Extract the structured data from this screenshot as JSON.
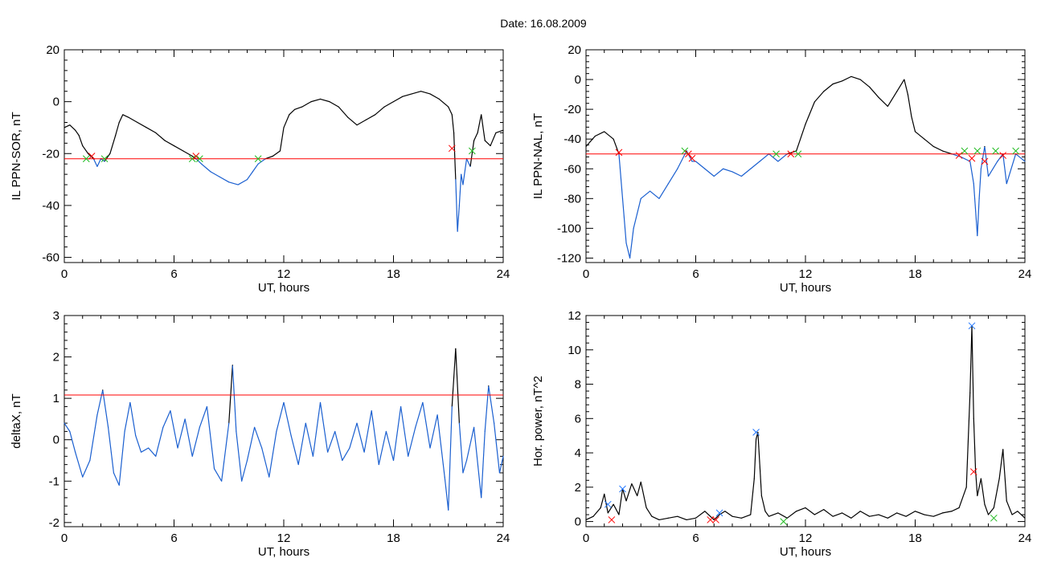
{
  "figure_title": "Date:  16.08.2009",
  "colors": {
    "trace": "#000000",
    "below": "#1a5fd0",
    "threshold": "#ff0000",
    "cross_red": "#ff0000",
    "cross_green": "#22bb22",
    "cross_blue": "#2277ff"
  },
  "chart_data": [
    {
      "id": "sor",
      "type": "line",
      "ylabel": "IL PPN-SOR, nT",
      "xlabel": "UT, hours",
      "xlim": [
        0,
        24
      ],
      "xticks": [
        0,
        6,
        12,
        18,
        24
      ],
      "ylim": [
        -62,
        20
      ],
      "yticks": [
        20,
        0,
        -20,
        -40,
        -60
      ],
      "threshold": -22,
      "series": [
        {
          "x": [
            0,
            0.3,
            0.6,
            0.8,
            1.0,
            1.3,
            1.6,
            1.8,
            2.0,
            2.2,
            2.5,
            2.8,
            3.0,
            3.2,
            3.5,
            4.0,
            4.5,
            5.0,
            5.5,
            6.0,
            6.5,
            7.0,
            7.2,
            7.5,
            8.0,
            8.5,
            9.0,
            9.5,
            10.0,
            10.3,
            10.6,
            11.0,
            11.4,
            11.8,
            12.0,
            12.3,
            12.6,
            13.0,
            13.5,
            14.0,
            14.5,
            15.0,
            15.5,
            16.0,
            16.5,
            17.0,
            17.5,
            18.0,
            18.5,
            19.0,
            19.5,
            20.0,
            20.5,
            21.0,
            21.2,
            21.3,
            21.4,
            21.5,
            21.6,
            21.7,
            21.8,
            22.0,
            22.2,
            22.4,
            22.6,
            22.8,
            23.0,
            23.3,
            23.6,
            24.0
          ],
          "y": [
            -10,
            -9,
            -11,
            -13,
            -17,
            -20,
            -22,
            -25,
            -22,
            -23,
            -20,
            -13,
            -8,
            -5,
            -6,
            -8,
            -10,
            -12,
            -15,
            -17,
            -19,
            -21,
            -22,
            -24,
            -27,
            -29,
            -31,
            -32,
            -30,
            -27,
            -24,
            -22,
            -21,
            -19,
            -10,
            -5,
            -3,
            -2,
            0,
            1,
            0,
            -2,
            -6,
            -9,
            -7,
            -5,
            -2,
            0,
            2,
            3,
            4,
            3,
            1,
            -2,
            -5,
            -12,
            -30,
            -50,
            -40,
            -28,
            -32,
            -22,
            -25,
            -15,
            -12,
            -5,
            -15,
            -17,
            -12,
            -11
          ]
        }
      ],
      "markers": [
        {
          "x": 1.2,
          "y": -22,
          "color": "green"
        },
        {
          "x": 1.5,
          "y": -21,
          "color": "red"
        },
        {
          "x": 2.2,
          "y": -22,
          "color": "green"
        },
        {
          "x": 7.0,
          "y": -22,
          "color": "green"
        },
        {
          "x": 7.2,
          "y": -21,
          "color": "red"
        },
        {
          "x": 7.4,
          "y": -22,
          "color": "green"
        },
        {
          "x": 10.6,
          "y": -22,
          "color": "green"
        },
        {
          "x": 21.2,
          "y": -18,
          "color": "red"
        },
        {
          "x": 22.3,
          "y": -19,
          "color": "green"
        }
      ]
    },
    {
      "id": "nal",
      "type": "line",
      "ylabel": "IL PPN-NAL, nT",
      "xlabel": "UT, hours",
      "xlim": [
        0,
        24
      ],
      "xticks": [
        0,
        6,
        12,
        18,
        24
      ],
      "ylim": [
        -123,
        20
      ],
      "yticks": [
        20,
        0,
        -20,
        -40,
        -60,
        -80,
        -100,
        -120
      ],
      "threshold": -50,
      "series": [
        {
          "x": [
            0,
            0.5,
            1.0,
            1.5,
            1.8,
            2.0,
            2.2,
            2.4,
            2.6,
            3.0,
            3.5,
            4.0,
            4.5,
            5.0,
            5.5,
            5.8,
            6.0,
            6.5,
            7.0,
            7.5,
            8.0,
            8.5,
            9.0,
            9.5,
            10.0,
            10.5,
            11.0,
            11.5,
            12.0,
            12.5,
            13.0,
            13.5,
            14.0,
            14.5,
            15.0,
            15.5,
            16.0,
            16.5,
            17.0,
            17.4,
            17.6,
            17.8,
            18.0,
            18.5,
            19.0,
            19.5,
            20.0,
            20.5,
            21.0,
            21.2,
            21.4,
            21.5,
            21.6,
            21.8,
            22.0,
            22.5,
            22.8,
            23.0,
            23.5,
            24.0
          ],
          "y": [
            -45,
            -38,
            -35,
            -40,
            -50,
            -80,
            -110,
            -120,
            -100,
            -80,
            -75,
            -80,
            -70,
            -60,
            -48,
            -55,
            -55,
            -60,
            -65,
            -60,
            -62,
            -65,
            -60,
            -55,
            -50,
            -55,
            -50,
            -48,
            -30,
            -15,
            -8,
            -3,
            -1,
            2,
            0,
            -5,
            -12,
            -18,
            -8,
            0,
            -10,
            -25,
            -35,
            -40,
            -45,
            -48,
            -50,
            -52,
            -55,
            -70,
            -105,
            -80,
            -60,
            -45,
            -65,
            -55,
            -50,
            -70,
            -50,
            -55
          ]
        }
      ],
      "markers": [
        {
          "x": 1.8,
          "y": -49,
          "color": "red"
        },
        {
          "x": 5.4,
          "y": -48,
          "color": "green"
        },
        {
          "x": 5.6,
          "y": -50,
          "color": "red"
        },
        {
          "x": 5.8,
          "y": -53,
          "color": "red"
        },
        {
          "x": 10.4,
          "y": -50,
          "color": "green"
        },
        {
          "x": 11.2,
          "y": -50,
          "color": "red"
        },
        {
          "x": 11.6,
          "y": -50,
          "color": "green"
        },
        {
          "x": 20.4,
          "y": -51,
          "color": "red"
        },
        {
          "x": 20.7,
          "y": -48,
          "color": "green"
        },
        {
          "x": 21.1,
          "y": -53,
          "color": "red"
        },
        {
          "x": 21.4,
          "y": -48,
          "color": "green"
        },
        {
          "x": 21.8,
          "y": -55,
          "color": "red"
        },
        {
          "x": 22.4,
          "y": -48,
          "color": "green"
        },
        {
          "x": 22.8,
          "y": -51,
          "color": "red"
        },
        {
          "x": 23.5,
          "y": -48,
          "color": "green"
        }
      ]
    },
    {
      "id": "deltax",
      "type": "line",
      "ylabel": "deltaX, nT",
      "xlabel": "UT, hours",
      "xlim": [
        0,
        24
      ],
      "xticks": [
        0,
        6,
        12,
        18,
        24
      ],
      "ylim": [
        -2.1,
        3
      ],
      "yticks": [
        3,
        2,
        1,
        0,
        -1,
        -2
      ],
      "threshold": 1.08,
      "series": [
        {
          "x": [
            0,
            0.3,
            0.6,
            1.0,
            1.4,
            1.8,
            2.1,
            2.4,
            2.7,
            3.0,
            3.3,
            3.6,
            3.9,
            4.2,
            4.6,
            5.0,
            5.4,
            5.8,
            6.2,
            6.6,
            7.0,
            7.4,
            7.8,
            8.2,
            8.6,
            9.0,
            9.2,
            9.4,
            9.7,
            10.0,
            10.4,
            10.8,
            11.2,
            11.6,
            12.0,
            12.4,
            12.8,
            13.2,
            13.6,
            14.0,
            14.4,
            14.8,
            15.2,
            15.6,
            16.0,
            16.4,
            16.8,
            17.2,
            17.6,
            18.0,
            18.4,
            18.8,
            19.2,
            19.6,
            20.0,
            20.4,
            20.8,
            21.0,
            21.2,
            21.4,
            21.6,
            21.8,
            22.0,
            22.4,
            22.8,
            23.0,
            23.2,
            23.5,
            23.8,
            24.0
          ],
          "y": [
            0.4,
            0.2,
            -0.3,
            -0.9,
            -0.5,
            0.6,
            1.2,
            0.3,
            -0.8,
            -1.1,
            0.2,
            0.9,
            0.1,
            -0.3,
            -0.2,
            -0.4,
            0.3,
            0.7,
            -0.2,
            0.5,
            -0.4,
            0.3,
            0.8,
            -0.7,
            -1.0,
            0.4,
            1.8,
            0.2,
            -1.0,
            -0.5,
            0.3,
            -0.2,
            -0.9,
            0.2,
            0.9,
            0.1,
            -0.6,
            0.4,
            -0.4,
            0.9,
            -0.3,
            0.2,
            -0.5,
            -0.2,
            0.4,
            -0.3,
            0.7,
            -0.6,
            0.2,
            -0.5,
            0.8,
            -0.4,
            0.3,
            0.9,
            -0.2,
            0.6,
            -0.9,
            -1.7,
            0.8,
            2.2,
            0.4,
            -0.8,
            -0.5,
            0.3,
            -1.4,
            0.2,
            1.3,
            0.4,
            -0.8,
            -0.4
          ]
        }
      ],
      "markers": []
    },
    {
      "id": "power",
      "type": "line",
      "ylabel": "Hor. power, nT^2",
      "xlabel": "UT, hours",
      "xlim": [
        0,
        24
      ],
      "xticks": [
        0,
        6,
        12,
        18,
        24
      ],
      "ylim": [
        -0.3,
        12
      ],
      "yticks": [
        12,
        10,
        8,
        6,
        4,
        2,
        0
      ],
      "threshold": null,
      "series": [
        {
          "x": [
            0,
            0.4,
            0.8,
            1.0,
            1.2,
            1.5,
            1.8,
            2.0,
            2.2,
            2.5,
            2.8,
            3.0,
            3.3,
            3.6,
            4.0,
            4.5,
            5.0,
            5.5,
            6.0,
            6.5,
            7.0,
            7.3,
            7.6,
            8.0,
            8.5,
            9.0,
            9.2,
            9.3,
            9.4,
            9.6,
            9.8,
            10.0,
            10.5,
            11.0,
            11.5,
            12.0,
            12.5,
            13.0,
            13.5,
            14.0,
            14.5,
            15.0,
            15.5,
            16.0,
            16.5,
            17.0,
            17.5,
            18.0,
            18.5,
            19.0,
            19.5,
            20.0,
            20.4,
            20.8,
            21.0,
            21.1,
            21.2,
            21.3,
            21.4,
            21.6,
            21.8,
            22.0,
            22.3,
            22.6,
            22.8,
            23.0,
            23.3,
            23.6,
            24.0
          ],
          "y": [
            0.1,
            0.3,
            0.8,
            1.6,
            0.5,
            1.0,
            0.4,
            1.9,
            1.2,
            2.2,
            1.5,
            2.3,
            0.8,
            0.3,
            0.1,
            0.2,
            0.3,
            0.1,
            0.2,
            0.6,
            0.1,
            0.4,
            0.6,
            0.3,
            0.2,
            0.4,
            2.5,
            4.8,
            5.2,
            1.5,
            0.6,
            0.3,
            0.5,
            0.2,
            0.6,
            0.8,
            0.4,
            0.7,
            0.3,
            0.5,
            0.2,
            0.6,
            0.3,
            0.4,
            0.2,
            0.5,
            0.3,
            0.6,
            0.4,
            0.3,
            0.5,
            0.6,
            0.8,
            2.0,
            7.5,
            11.4,
            6.0,
            3.0,
            1.5,
            2.5,
            1.0,
            0.4,
            0.8,
            2.5,
            4.2,
            1.2,
            0.4,
            0.6,
            0.2
          ]
        }
      ],
      "markers": [
        {
          "x": 1.2,
          "y": 1.0,
          "color": "blue"
        },
        {
          "x": 1.4,
          "y": 0.1,
          "color": "red"
        },
        {
          "x": 2.0,
          "y": 1.9,
          "color": "blue"
        },
        {
          "x": 6.8,
          "y": 0.1,
          "color": "red"
        },
        {
          "x": 7.1,
          "y": 0.1,
          "color": "red"
        },
        {
          "x": 7.3,
          "y": 0.5,
          "color": "blue"
        },
        {
          "x": 9.3,
          "y": 5.2,
          "color": "blue"
        },
        {
          "x": 10.8,
          "y": 0.0,
          "color": "green"
        },
        {
          "x": 21.1,
          "y": 11.4,
          "color": "blue"
        },
        {
          "x": 21.2,
          "y": 2.9,
          "color": "red"
        },
        {
          "x": 22.3,
          "y": 0.2,
          "color": "green"
        }
      ]
    }
  ]
}
